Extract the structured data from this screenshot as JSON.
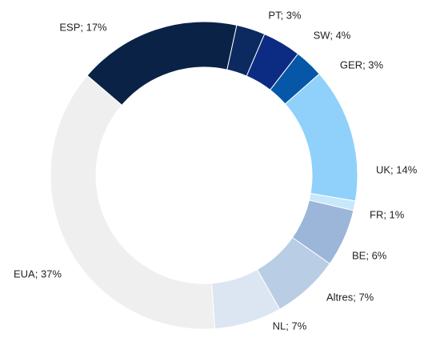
{
  "chart_data": {
    "type": "donut",
    "value_labels": [
      "ESP; 17%",
      "PT; 3%",
      "SW; 4%",
      "GER; 3%",
      "UK; 14%",
      "FR; 1%",
      "BE; 6%",
      "Altres; 7%",
      "NL; 7%",
      "EUA; 37%"
    ],
    "values": [
      17,
      3,
      4,
      3,
      14,
      1,
      6,
      7,
      7,
      37
    ],
    "colors": [
      "#0b2247",
      "#0c2a60",
      "#0b2c82",
      "#0757a8",
      "#8fd1fa",
      "#c8e7fb",
      "#9bb6d9",
      "#b9cde5",
      "#dce6f2",
      "#efefef"
    ]
  }
}
